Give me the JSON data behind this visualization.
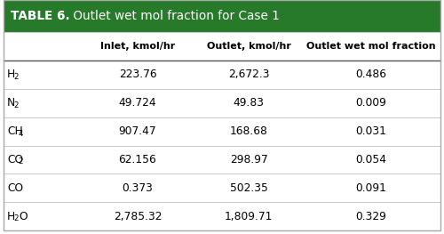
{
  "title_bold": "TABLE 6.",
  "title_rest": " Outlet wet mol fraction for Case 1",
  "header_bg": "#277a2a",
  "header_text_color": "#ffffff",
  "table_bg": "#ffffff",
  "col_headers": [
    "Inlet, kmol/hr",
    "Outlet, kmol/hr",
    "Outlet wet mol fraction"
  ],
  "inlet": [
    "223.76",
    "49.724",
    "907.47",
    "62.156",
    "0.373",
    "2,785.32"
  ],
  "outlet": [
    "2,672.3",
    "49.83",
    "168.68",
    "298.97",
    "502.35",
    "1,809.71"
  ],
  "wet_mol_fraction": [
    "0.486",
    "0.009",
    "0.031",
    "0.054",
    "0.091",
    "0.329"
  ],
  "line_color": "#c8c8c8",
  "header_line_color": "#555555",
  "row_labels_base": [
    "H",
    "N",
    "CH",
    "CO",
    "CO",
    "H"
  ],
  "row_labels_sub": [
    "2",
    "2",
    "4",
    "2",
    "",
    "2"
  ],
  "row_labels_post": [
    "",
    "",
    "",
    "",
    "",
    "O"
  ]
}
